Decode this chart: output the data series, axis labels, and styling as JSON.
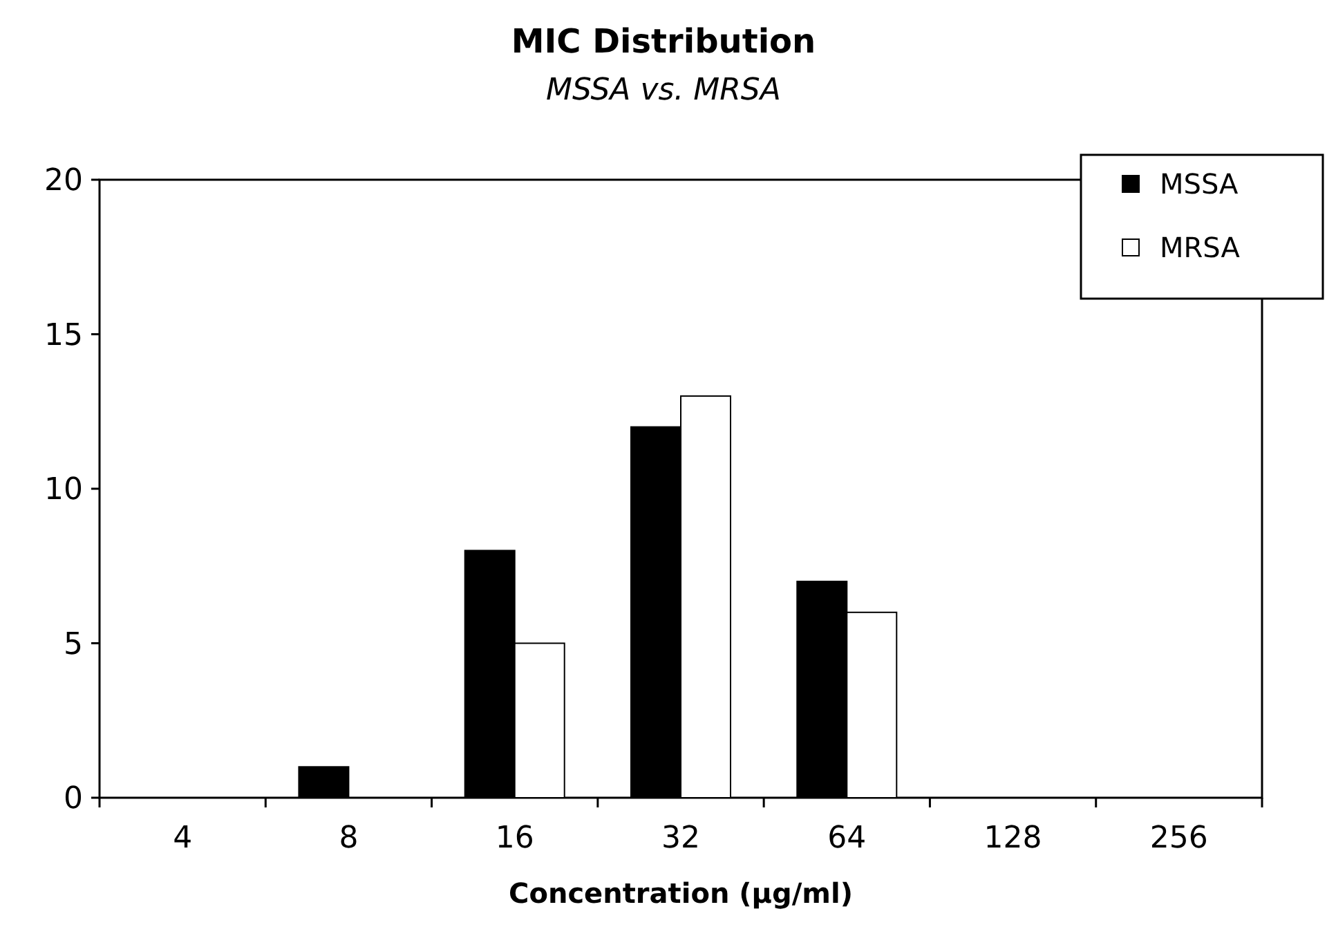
{
  "chart_data": {
    "type": "bar",
    "title": "MIC Distribution",
    "subtitle": "MSSA vs. MRSA",
    "xlabel": "Concentration (µg/ml)",
    "categories": [
      "4",
      "8",
      "16",
      "32",
      "64",
      "128",
      "256"
    ],
    "series": [
      {
        "name": "MSSA",
        "color": "#000000",
        "values": [
          0,
          1,
          8,
          12,
          7,
          0,
          0
        ]
      },
      {
        "name": "MRSA",
        "color": "#ffffff",
        "values": [
          0,
          0,
          5,
          13,
          6,
          0,
          0
        ]
      }
    ],
    "ylim": [
      0,
      20
    ],
    "yticks": [
      0,
      5,
      10,
      15,
      20
    ],
    "grid": false,
    "legend": "top right"
  }
}
